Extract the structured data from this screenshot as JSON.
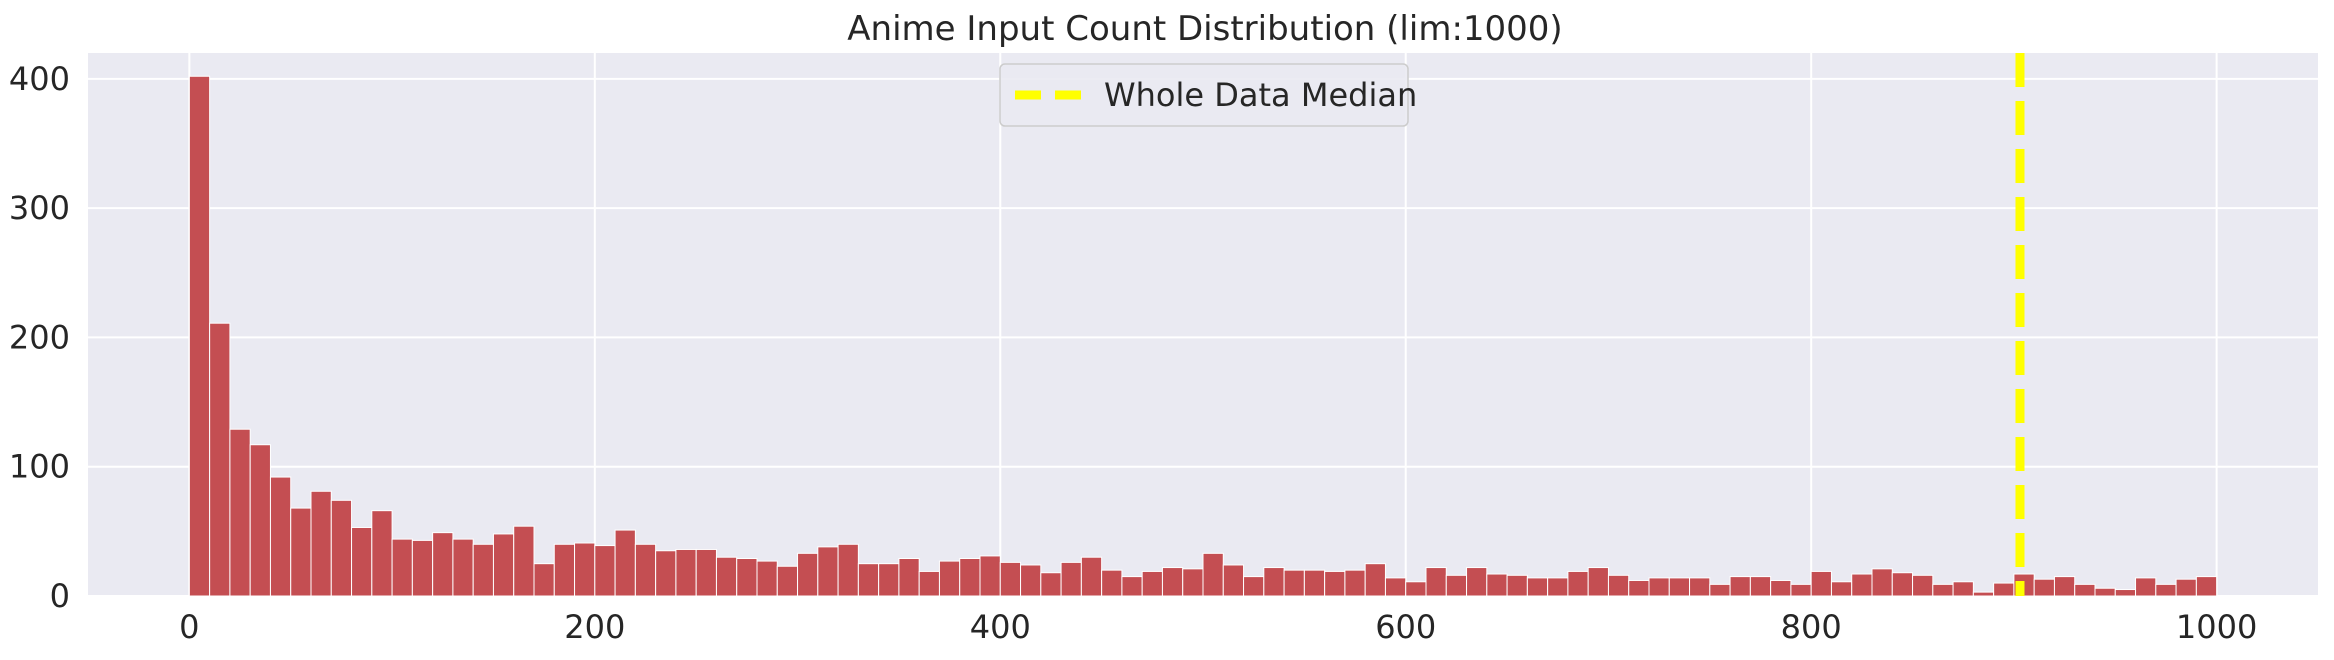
{
  "chart_data": {
    "type": "bar",
    "subtype": "histogram",
    "title": "Anime Input Count Distribution (lim:1000)",
    "xlabel": "",
    "ylabel": "",
    "xlim": [
      -50,
      1050
    ],
    "ylim": [
      0,
      420
    ],
    "x_ticks": [
      0,
      200,
      400,
      600,
      800,
      1000
    ],
    "y_ticks": [
      0,
      100,
      200,
      300,
      400
    ],
    "grid": true,
    "bar_color": "#c44e52",
    "background_color": "#eaeaf2",
    "grid_color": "#ffffff",
    "bin_edges_range": [
      0,
      1000
    ],
    "bin_width": 10,
    "values": [
      402,
      211,
      129,
      117,
      92,
      68,
      81,
      74,
      53,
      66,
      44,
      43,
      49,
      44,
      40,
      48,
      54,
      25,
      40,
      41,
      39,
      51,
      40,
      35,
      36,
      36,
      30,
      29,
      27,
      23,
      33,
      38,
      40,
      25,
      25,
      29,
      19,
      27,
      29,
      31,
      26,
      24,
      18,
      26,
      30,
      20,
      15,
      19,
      22,
      21,
      33,
      24,
      15,
      22,
      20,
      20,
      19,
      20,
      25,
      14,
      11,
      22,
      16,
      22,
      17,
      16,
      14,
      14,
      19,
      22,
      16,
      12,
      14,
      14,
      14,
      9,
      15,
      15,
      12,
      9,
      19,
      11,
      17,
      21,
      18,
      16,
      9,
      11,
      3,
      10,
      17,
      13,
      15,
      9,
      6,
      5,
      14,
      9,
      13,
      15
    ],
    "median_line": {
      "x": 903,
      "color": "#ffff00",
      "style": "dashed",
      "label": "Whole Data Median"
    },
    "legend": {
      "placement": "upper-center",
      "entries": [
        "Whole Data Median"
      ]
    }
  }
}
